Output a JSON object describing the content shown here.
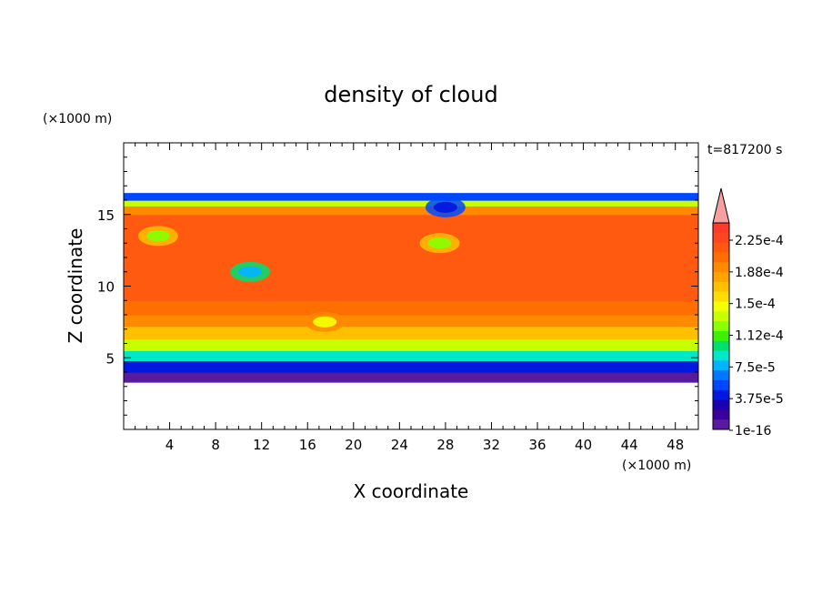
{
  "chart_data": {
    "type": "heatmap",
    "title": "density of cloud",
    "time_label": "t=817200 s",
    "xlabel": "X coordinate",
    "ylabel": "Z coordinate",
    "x_unit": "(×1000 m)",
    "y_unit": "(×1000 m)",
    "xlim": [
      0,
      50
    ],
    "ylim": [
      0,
      20
    ],
    "x_ticks": [
      4,
      8,
      12,
      16,
      20,
      24,
      28,
      32,
      36,
      40,
      44,
      48
    ],
    "y_ticks": [
      5,
      10,
      15
    ],
    "grid": false,
    "colorbar": {
      "min": 1e-16,
      "max": 0.00025,
      "extend": "max",
      "labels": [
        "2.25e-4",
        "1.88e-4",
        "1.5e-4",
        "1.12e-4",
        "7.5e-5",
        "3.75e-5",
        "1e-16"
      ],
      "levels": [
        0.00025,
        0.0002375,
        0.000225,
        0.0002125,
        0.0002,
        0.0001875,
        0.000175,
        0.0001625,
        0.00015,
        0.0001375,
        0.000125,
        0.0001125,
        0.0001,
        8.75e-05,
        7.5e-05,
        6.25e-05,
        5e-05,
        3.75e-05,
        2.5e-05,
        1.25e-05,
        0.0
      ],
      "colors": [
        "#ff3c2a",
        "#ff4620",
        "#ff5a10",
        "#ff6e00",
        "#ff8a00",
        "#ffa300",
        "#ffc000",
        "#ffdd00",
        "#f4ff00",
        "#c6ff00",
        "#8aff00",
        "#3cf000",
        "#00e070",
        "#00e8c8",
        "#00b4ff",
        "#0078ff",
        "#0048ff",
        "#0018e0",
        "#1a00b0",
        "#3c0098",
        "#5a1aa0"
      ],
      "extend_color": "#f7a0a0"
    },
    "field": {
      "domain_top_km": 16.5,
      "domain_bottom_km": 3.3,
      "vertical_profile": [
        {
          "z": 3.3,
          "value": 2e-06
        },
        {
          "z": 4.0,
          "value": 2e-05
        },
        {
          "z": 4.8,
          "value": 7e-05
        },
        {
          "z": 5.5,
          "value": 0.00012
        },
        {
          "z": 6.3,
          "value": 0.000165
        },
        {
          "z": 7.2,
          "value": 0.000195
        },
        {
          "z": 8.0,
          "value": 0.00021
        },
        {
          "z": 9.0,
          "value": 0.00022
        },
        {
          "z": 10.5,
          "value": 0.000232
        },
        {
          "z": 13.0,
          "value": 0.000235
        },
        {
          "z": 15.0,
          "value": 0.000232
        },
        {
          "z": 15.6,
          "value": 0.00019
        },
        {
          "z": 16.0,
          "value": 0.0001
        },
        {
          "z": 16.5,
          "value": 5e-06
        }
      ],
      "features": [
        {
          "x": 11.0,
          "z": 11.0,
          "value": 8e-05
        },
        {
          "x": 3.0,
          "z": 13.5,
          "value": 0.00013
        },
        {
          "x": 17.5,
          "z": 7.5,
          "value": 0.00015
        },
        {
          "x": 27.5,
          "z": 13.0,
          "value": 0.00013
        },
        {
          "x": 28.0,
          "z": 15.5,
          "value": 4e-05
        }
      ]
    }
  }
}
